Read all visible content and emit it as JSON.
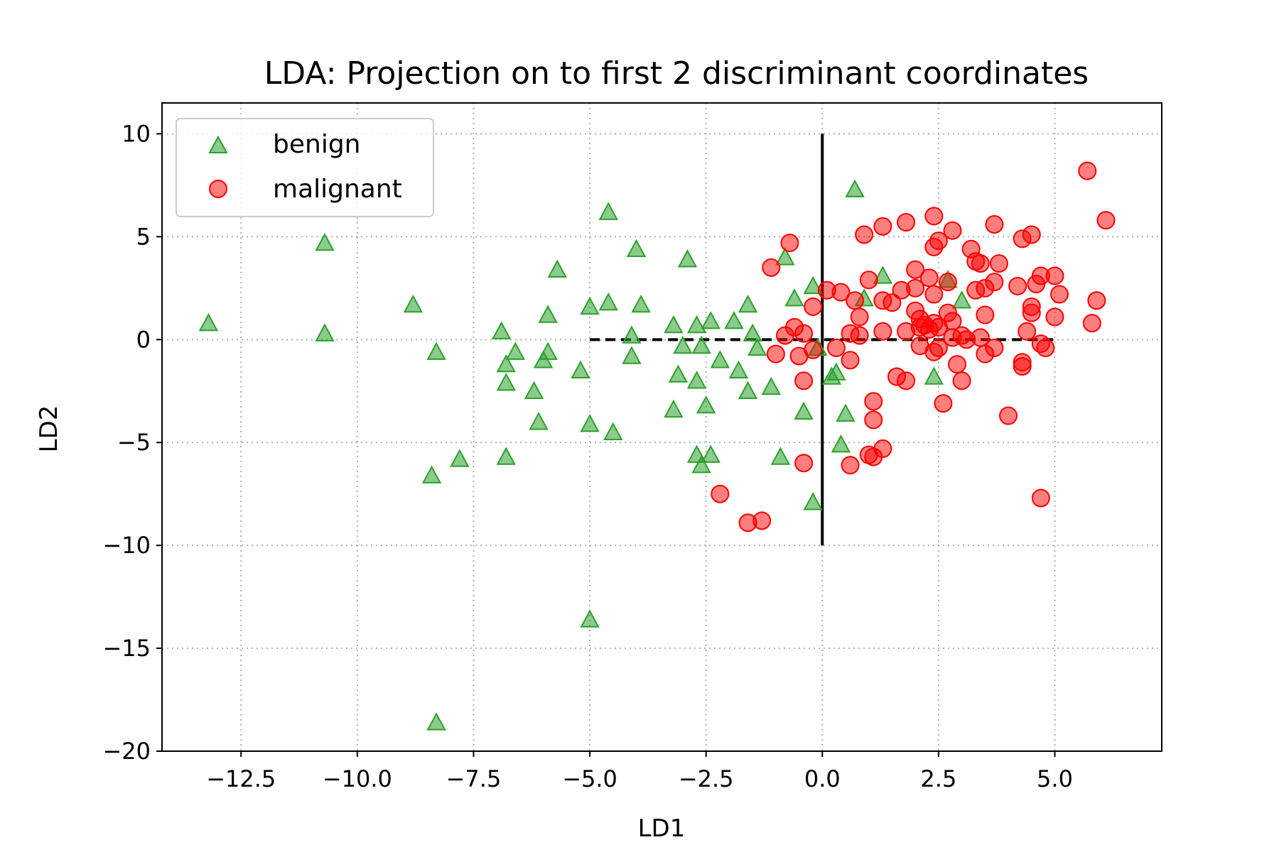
{
  "chart_data": {
    "type": "scatter",
    "title": "LDA: Projection on to first 2 discriminant coordinates",
    "xlabel": "LD1",
    "ylabel": "LD2",
    "xlim": [
      -14.2,
      7.3
    ],
    "ylim": [
      -20,
      11.5
    ],
    "xticks": [
      -12.5,
      -10.0,
      -7.5,
      -5.0,
      -2.5,
      0.0,
      2.5,
      5.0
    ],
    "xtick_labels": [
      "−12.5",
      "−10.0",
      "−7.5",
      "−5.0",
      "−2.5",
      "0.0",
      "2.5",
      "5.0"
    ],
    "yticks": [
      10,
      5,
      0,
      -5,
      -10,
      -15,
      -20
    ],
    "ytick_labels": [
      "10",
      "5",
      "0",
      "−5",
      "−10",
      "−15",
      "−20"
    ],
    "grid": true,
    "legend_position": "top-left",
    "reference_lines": [
      {
        "style": "solid",
        "color": "#000000",
        "x": [
          0,
          0
        ],
        "y": [
          -10,
          10
        ]
      },
      {
        "style": "dashed",
        "color": "#000000",
        "x": [
          -5,
          5
        ],
        "y": [
          0,
          0
        ]
      }
    ],
    "series": [
      {
        "name": "benign",
        "marker": "triangle",
        "color": "#2ca02c",
        "points": [
          [
            -13.2,
            0.8
          ],
          [
            -10.7,
            4.7
          ],
          [
            -10.7,
            0.3
          ],
          [
            -8.8,
            1.7
          ],
          [
            -8.3,
            -0.6
          ],
          [
            -8.4,
            -6.6
          ],
          [
            -7.8,
            -5.8
          ],
          [
            -6.9,
            0.4
          ],
          [
            -6.8,
            -1.2
          ],
          [
            -6.6,
            -0.6
          ],
          [
            -6.8,
            -2.1
          ],
          [
            -6.2,
            -2.5
          ],
          [
            -6.1,
            -4.0
          ],
          [
            -5.7,
            3.4
          ],
          [
            -5.9,
            1.2
          ],
          [
            -5.9,
            -0.6
          ],
          [
            -6.0,
            -1.0
          ],
          [
            -6.8,
            -5.7
          ],
          [
            -5.0,
            1.6
          ],
          [
            -5.2,
            -1.5
          ],
          [
            -5.0,
            -4.1
          ],
          [
            -4.6,
            1.8
          ],
          [
            -4.6,
            6.2
          ],
          [
            -4.5,
            -4.5
          ],
          [
            -4.0,
            4.4
          ],
          [
            -3.9,
            1.7
          ],
          [
            -4.1,
            0.2
          ],
          [
            -4.1,
            -0.8
          ],
          [
            -3.2,
            0.7
          ],
          [
            -3.0,
            -0.3
          ],
          [
            -3.1,
            -1.7
          ],
          [
            -3.2,
            -3.4
          ],
          [
            -2.9,
            3.9
          ],
          [
            -2.7,
            0.7
          ],
          [
            -2.6,
            -0.3
          ],
          [
            -2.7,
            -2.0
          ],
          [
            -2.5,
            -3.2
          ],
          [
            -2.7,
            -5.6
          ],
          [
            -2.4,
            -5.6
          ],
          [
            -2.6,
            -6.1
          ],
          [
            -2.4,
            0.9
          ],
          [
            -2.2,
            -1.0
          ],
          [
            -1.9,
            0.9
          ],
          [
            -1.6,
            1.7
          ],
          [
            -1.5,
            0.3
          ],
          [
            -1.4,
            -0.4
          ],
          [
            -1.8,
            -1.5
          ],
          [
            -1.6,
            -2.5
          ],
          [
            -1.1,
            -2.3
          ],
          [
            -0.8,
            4.0
          ],
          [
            -0.6,
            2.0
          ],
          [
            -0.2,
            2.6
          ],
          [
            -0.1,
            -0.4
          ],
          [
            -0.4,
            -3.5
          ],
          [
            -0.9,
            -5.7
          ],
          [
            -0.2,
            -7.9
          ],
          [
            0.3,
            -1.6
          ],
          [
            0.5,
            -3.6
          ],
          [
            0.4,
            -5.1
          ],
          [
            0.7,
            7.3
          ],
          [
            1.3,
            3.1
          ],
          [
            0.9,
            2.0
          ],
          [
            2.7,
            2.9
          ],
          [
            3.0,
            1.9
          ],
          [
            2.4,
            -1.8
          ],
          [
            -5.0,
            -13.6
          ],
          [
            -8.3,
            -18.6
          ],
          [
            0.2,
            -1.8
          ]
        ]
      },
      {
        "name": "malignant",
        "marker": "circle",
        "color": "#ff0000",
        "points": [
          [
            5.7,
            8.2
          ],
          [
            6.1,
            5.8
          ],
          [
            2.4,
            6.0
          ],
          [
            1.8,
            5.7
          ],
          [
            1.3,
            5.5
          ],
          [
            0.9,
            5.1
          ],
          [
            2.8,
            5.3
          ],
          [
            3.7,
            5.6
          ],
          [
            4.5,
            5.1
          ],
          [
            4.3,
            4.9
          ],
          [
            2.5,
            4.8
          ],
          [
            2.4,
            4.5
          ],
          [
            3.2,
            4.4
          ],
          [
            3.3,
            3.8
          ],
          [
            3.4,
            3.7
          ],
          [
            3.8,
            3.7
          ],
          [
            -0.7,
            4.7
          ],
          [
            -1.1,
            3.5
          ],
          [
            2.0,
            3.4
          ],
          [
            2.3,
            3.0
          ],
          [
            2.7,
            2.8
          ],
          [
            3.3,
            2.4
          ],
          [
            3.5,
            2.5
          ],
          [
            4.2,
            2.6
          ],
          [
            4.6,
            2.7
          ],
          [
            4.7,
            3.1
          ],
          [
            5.0,
            3.1
          ],
          [
            5.1,
            2.2
          ],
          [
            5.9,
            1.9
          ],
          [
            5.8,
            0.8
          ],
          [
            5.0,
            1.1
          ],
          [
            4.5,
            1.6
          ],
          [
            4.5,
            1.3
          ],
          [
            4.4,
            0.4
          ],
          [
            4.7,
            -0.2
          ],
          [
            4.8,
            -0.4
          ],
          [
            3.7,
            2.8
          ],
          [
            3.5,
            1.2
          ],
          [
            3.4,
            0.1
          ],
          [
            3.7,
            -0.4
          ],
          [
            3.5,
            -0.7
          ],
          [
            3.0,
            0.2
          ],
          [
            2.8,
            0.9
          ],
          [
            2.7,
            1.3
          ],
          [
            2.5,
            0.6
          ],
          [
            2.4,
            0.8
          ],
          [
            2.2,
            0.7
          ],
          [
            2.1,
            0.6
          ],
          [
            2.3,
            0.5
          ],
          [
            2.1,
            1.0
          ],
          [
            2.0,
            1.4
          ],
          [
            2.0,
            2.5
          ],
          [
            2.4,
            2.2
          ],
          [
            1.7,
            2.4
          ],
          [
            1.3,
            1.9
          ],
          [
            1.5,
            1.8
          ],
          [
            1.0,
            2.9
          ],
          [
            0.8,
            1.1
          ],
          [
            0.7,
            1.9
          ],
          [
            0.4,
            2.3
          ],
          [
            0.1,
            2.4
          ],
          [
            -0.2,
            1.6
          ],
          [
            -0.6,
            0.6
          ],
          [
            -0.4,
            0.3
          ],
          [
            -0.8,
            0.2
          ],
          [
            -0.2,
            -0.5
          ],
          [
            -0.5,
            -0.8
          ],
          [
            -1.0,
            -0.7
          ],
          [
            0.3,
            -0.4
          ],
          [
            0.6,
            0.3
          ],
          [
            0.8,
            0.2
          ],
          [
            1.3,
            0.4
          ],
          [
            1.8,
            0.4
          ],
          [
            2.1,
            -0.3
          ],
          [
            2.4,
            -0.6
          ],
          [
            2.5,
            -0.4
          ],
          [
            2.8,
            0.1
          ],
          [
            3.1,
            0.0
          ],
          [
            2.9,
            -1.2
          ],
          [
            3.0,
            -2.0
          ],
          [
            1.6,
            -1.8
          ],
          [
            1.8,
            -2.0
          ],
          [
            -0.4,
            -2.0
          ],
          [
            1.1,
            -3.0
          ],
          [
            1.1,
            -3.9
          ],
          [
            2.6,
            -3.1
          ],
          [
            4.0,
            -3.7
          ],
          [
            4.3,
            -1.1
          ],
          [
            4.3,
            -1.3
          ],
          [
            0.6,
            -1.0
          ],
          [
            1.0,
            -5.6
          ],
          [
            1.1,
            -5.7
          ],
          [
            1.3,
            -5.3
          ],
          [
            0.6,
            -6.1
          ],
          [
            -0.4,
            -6.0
          ],
          [
            -2.2,
            -7.5
          ],
          [
            -1.6,
            -8.9
          ],
          [
            -1.3,
            -8.8
          ],
          [
            4.7,
            -7.7
          ]
        ]
      }
    ]
  }
}
